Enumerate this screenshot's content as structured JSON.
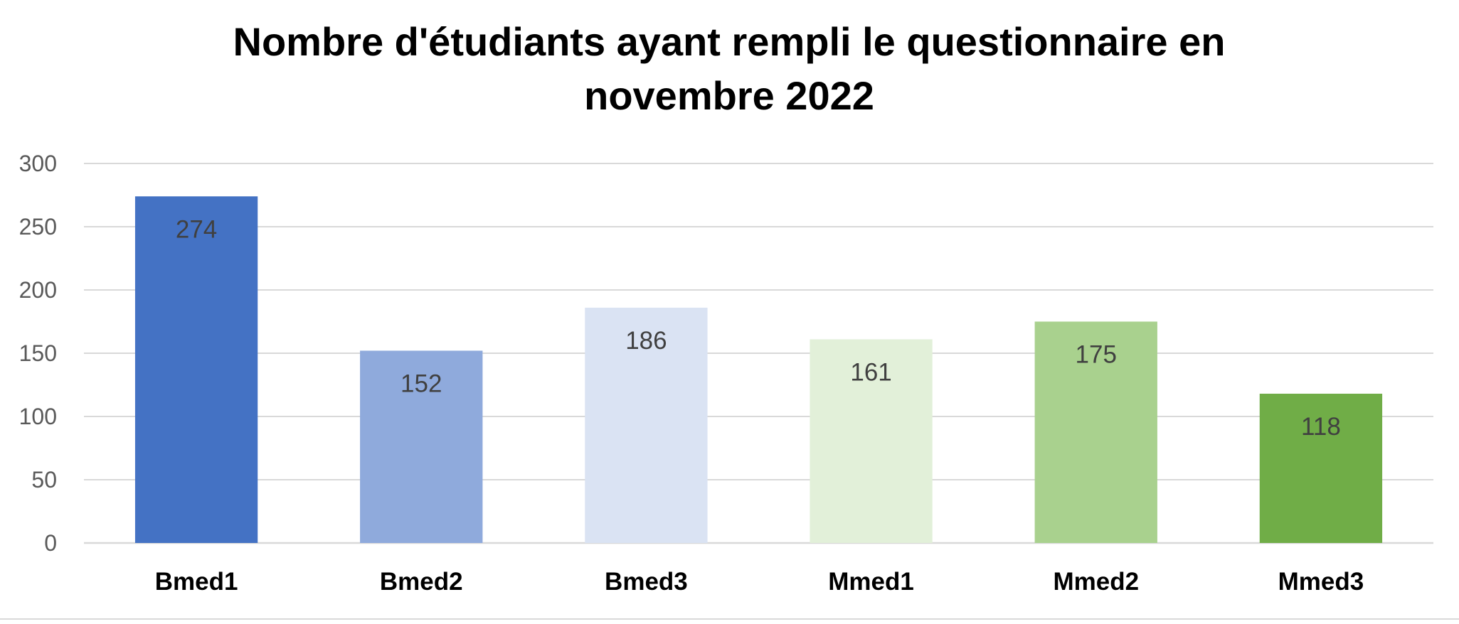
{
  "chart_data": {
    "type": "bar",
    "title_lines": [
      "Nombre d'étudiants ayant rempli le questionnaire en",
      "novembre 2022"
    ],
    "categories": [
      "Bmed1",
      "Bmed2",
      "Bmed3",
      "Mmed1",
      "Mmed2",
      "Mmed3"
    ],
    "values": [
      274,
      152,
      186,
      161,
      175,
      118
    ],
    "data_labels": [
      "274",
      "152",
      "186",
      "161",
      "175",
      "118"
    ],
    "colors": [
      "#4472c4",
      "#8faadc",
      "#dae3f3",
      "#e2f0d9",
      "#a9d18e",
      "#70ad47"
    ],
    "ylim": [
      0,
      300
    ],
    "yticks": [
      "0",
      "50",
      "100",
      "150",
      "200",
      "250",
      "300"
    ],
    "ytick_values": [
      0,
      50,
      100,
      150,
      200,
      250,
      300
    ],
    "grid": true,
    "legend": "none",
    "xlabel": "",
    "ylabel": ""
  }
}
